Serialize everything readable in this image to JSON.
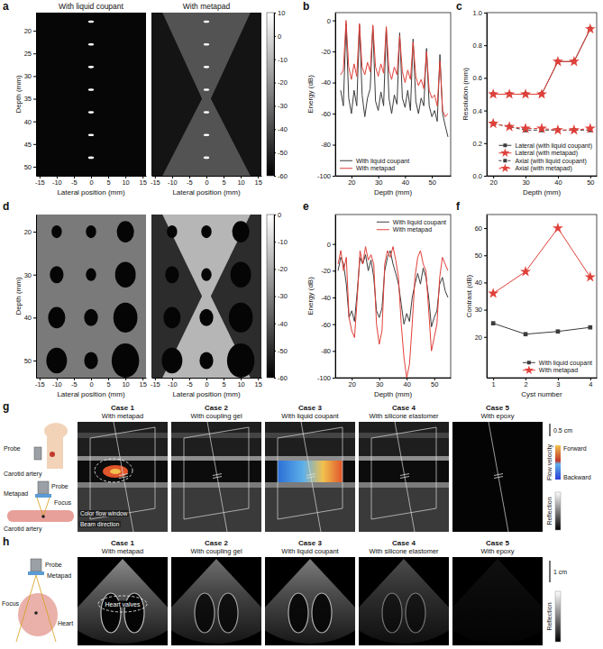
{
  "chart_data": [
    {
      "letter": "a",
      "type": "image",
      "xlabel": "Lateral position (mm)",
      "ylabel": "Depth (mm)",
      "xlim": [
        -16,
        16
      ],
      "xticks": [
        -15,
        -10,
        -5,
        0,
        5,
        10,
        15
      ],
      "ylim": [
        16,
        52
      ],
      "yticks": [
        20,
        25,
        30,
        35,
        40,
        45,
        50
      ],
      "images": [
        {
          "title": "With liquid coupant",
          "color": "#060606"
        },
        {
          "title": "With metapad",
          "color": "#141414",
          "focus": 35
        }
      ],
      "targets": {
        "lateral": [
          0,
          0,
          0,
          0,
          0,
          0,
          0
        ],
        "depth": [
          18,
          23,
          28,
          33,
          38,
          43,
          48
        ]
      },
      "colorbar": {
        "lim": [
          -60,
          10
        ],
        "ticks": [
          10,
          0,
          -10,
          -20,
          -30,
          -40,
          -50,
          -60
        ]
      }
    },
    {
      "letter": "b",
      "type": "line",
      "xlabel": "Depth (mm)",
      "ylabel": "Energy (dB)",
      "xlim": [
        14,
        57
      ],
      "xticks": [
        20,
        30,
        40,
        50
      ],
      "ylim": [
        -100,
        5
      ],
      "yticks": [
        -100,
        -80,
        -60,
        -40,
        -20,
        0
      ],
      "legend": "lower left",
      "x": [
        16,
        17,
        18,
        19,
        20,
        21,
        22,
        23,
        24,
        25,
        26,
        27,
        28,
        29,
        30,
        31,
        32,
        33,
        34,
        35,
        36,
        37,
        38,
        39,
        40,
        41,
        42,
        43,
        44,
        45,
        46,
        47,
        48,
        49,
        50,
        51,
        52,
        53,
        54,
        55,
        56
      ],
      "series": [
        {
          "name": "With liquid coupant",
          "color": "#3c3c3c",
          "values": [
            -45,
            -55,
            -2,
            -50,
            -60,
            -45,
            -55,
            -3,
            -48,
            -62,
            -50,
            -44,
            -4,
            -52,
            -58,
            -46,
            -55,
            -5,
            -50,
            -60,
            -48,
            -54,
            -8,
            -50,
            -56,
            -45,
            -58,
            -12,
            -52,
            -60,
            -50,
            -55,
            -18,
            -55,
            -62,
            -58,
            -65,
            -22,
            -60,
            -68,
            -75
          ]
        },
        {
          "name": "With metapad",
          "color": "#e0403a",
          "values": [
            -35,
            -32,
            0,
            -30,
            -38,
            -28,
            -36,
            -2,
            -30,
            -35,
            -27,
            -33,
            -3,
            -30,
            -36,
            -28,
            -34,
            -4,
            -32,
            -38,
            -30,
            -35,
            -10,
            -33,
            -40,
            -32,
            -38,
            -14,
            -36,
            -42,
            -38,
            -44,
            -20,
            -45,
            -50,
            -48,
            -55,
            -26,
            -58,
            -62,
            -60
          ]
        }
      ]
    },
    {
      "letter": "c",
      "type": "line",
      "xlabel": "Depth (mm)",
      "ylabel": "Resolution (mm)",
      "xlim": [
        18,
        52
      ],
      "xticks": [
        20,
        30,
        40,
        50
      ],
      "ylim": [
        0,
        1
      ],
      "yticks": [
        {
          "value": 0,
          "label": "0.0"
        },
        {
          "value": 0.2,
          "label": "0.2"
        },
        {
          "value": 0.4,
          "label": "0.4"
        },
        {
          "value": 0.6,
          "label": "0.6"
        },
        {
          "value": 0.8,
          "label": "0.8"
        },
        {
          "value": 1,
          "label": "1.0"
        }
      ],
      "legend": "lower right",
      "x": [
        20,
        25,
        30,
        35,
        40,
        45,
        50
      ],
      "series": [
        {
          "name": "Lateral (with liquid coupant)",
          "color": "#3c3c3c",
          "marker": "square",
          "line_style": "solid",
          "values": [
            0.5,
            0.5,
            0.5,
            0.5,
            0.7,
            0.7,
            0.9
          ]
        },
        {
          "name": "Lateral (with metapad)",
          "color": "#e0403a",
          "marker": "star",
          "line_style": "solid",
          "values": [
            0.5,
            0.5,
            0.5,
            0.5,
            0.7,
            0.7,
            0.9
          ]
        },
        {
          "name": "Axial (with liquid coupant)",
          "color": "#3c3c3c",
          "marker": "square",
          "line_style": "dashed",
          "values": [
            0.32,
            0.3,
            0.28,
            0.28,
            0.28,
            0.28,
            0.28
          ]
        },
        {
          "name": "Axial (with metapad)",
          "color": "#e0403a",
          "marker": "star",
          "line_style": "dashed",
          "values": [
            0.32,
            0.3,
            0.29,
            0.29,
            0.28,
            0.28,
            0.29
          ]
        }
      ]
    },
    {
      "letter": "d",
      "type": "image",
      "xlabel": "Lateral position (mm)",
      "ylabel": "Depth (mm)",
      "xlim": [
        -16,
        16
      ],
      "xticks": [
        -15,
        -10,
        -5,
        0,
        5,
        10,
        15
      ],
      "ylim": [
        16,
        54
      ],
      "yticks": [
        20,
        30,
        40,
        50
      ],
      "images": [
        {
          "color": "#7a7a7a"
        },
        {
          "color": "#2c2c2c",
          "focus": 35
        }
      ],
      "targets": {
        "lateral": [
          -10,
          0,
          10,
          -10,
          0,
          10,
          -10,
          0,
          10,
          -10,
          0,
          10
        ],
        "depth": [
          20,
          20,
          20,
          30,
          30,
          30,
          40,
          40,
          40,
          50,
          50,
          50
        ],
        "radius": [
          1.5,
          1.5,
          2.5,
          2,
          1.5,
          3,
          2.5,
          2,
          3.5,
          3,
          2,
          4
        ]
      },
      "colorbar": {
        "lim": [
          -60,
          0
        ],
        "ticks": [
          0,
          -10,
          -20,
          -30,
          -40,
          -50,
          -60
        ]
      }
    },
    {
      "letter": "e",
      "type": "line",
      "xlabel": "Depth (mm)",
      "ylabel": "Energy (dB)",
      "xlim": [
        14,
        56
      ],
      "xticks": [
        20,
        30,
        40,
        50
      ],
      "ylim": [
        -100,
        22
      ],
      "yticks": [
        -100,
        -80,
        -60,
        -40,
        -20,
        0
      ],
      "legend": "upper right",
      "x": [
        15,
        16,
        17,
        18,
        19,
        20,
        21,
        22,
        23,
        24,
        25,
        26,
        27,
        28,
        29,
        30,
        31,
        32,
        33,
        34,
        35,
        36,
        37,
        38,
        39,
        40,
        41,
        42,
        43,
        44,
        45,
        46,
        47,
        48,
        49,
        50,
        51,
        52,
        53,
        54,
        55
      ],
      "series": [
        {
          "name": "With liquid coupant",
          "color": "#3c3c3c",
          "values": [
            -20,
            -10,
            -15,
            -30,
            -55,
            -50,
            -58,
            -35,
            -10,
            -15,
            -8,
            -20,
            -12,
            -25,
            -50,
            -55,
            -48,
            -20,
            -10,
            -5,
            -15,
            -22,
            -30,
            -45,
            -60,
            -52,
            -58,
            -40,
            -30,
            -22,
            -30,
            -18,
            -25,
            -40,
            -62,
            -55,
            -50,
            -30,
            -25,
            -35,
            -40
          ]
        },
        {
          "name": "With metapad",
          "color": "#e0403a",
          "values": [
            -15,
            -5,
            -20,
            -10,
            -55,
            -65,
            -70,
            -40,
            -5,
            -15,
            -2,
            -12,
            -8,
            -15,
            -60,
            -75,
            -65,
            -15,
            -5,
            -10,
            -2,
            -12,
            -25,
            -60,
            -85,
            -100,
            -90,
            -60,
            -25,
            -10,
            -5,
            -15,
            -20,
            -50,
            -80,
            -70,
            -60,
            -25,
            -10,
            -15,
            -20
          ]
        }
      ]
    },
    {
      "letter": "f",
      "type": "line",
      "xlabel": "Cyst number",
      "ylabel": "Contrast (dB)",
      "xlim": [
        0.8,
        4.2
      ],
      "xticks": [
        1,
        2,
        3,
        4
      ],
      "ylim": [
        5,
        65
      ],
      "yticks": [
        20,
        30,
        40,
        50,
        60
      ],
      "legend": "lower right",
      "x": [
        1,
        2,
        3,
        4
      ],
      "series": [
        {
          "name": "With liquid coupant",
          "color": "#3c3c3c",
          "marker": "square",
          "line_style": "solid",
          "values": [
            25,
            21,
            22,
            23.5
          ]
        },
        {
          "name": "With metapad",
          "color": "#e0403a",
          "marker": "star",
          "line_style": "solid",
          "values": [
            36,
            44,
            60,
            42
          ]
        }
      ]
    }
  ],
  "schematics": [
    {
      "letter": "g",
      "diagram_labels": [
        "Probe",
        "Carotid artery",
        "Metapad",
        "Probe",
        "Carotid artery",
        "Focus"
      ],
      "cases": [
        {
          "case": "Case 1",
          "title": "With metapad"
        },
        {
          "case": "Case 2",
          "title": "With coupling gel"
        },
        {
          "case": "Case 3",
          "title": "With liquid coupant"
        },
        {
          "case": "Case 4",
          "title": "With silicone elastomer"
        },
        {
          "case": "Case 5",
          "title": "With epoxy"
        }
      ],
      "annotations": [
        "Color flow window",
        "Beam direction"
      ],
      "scale_bar": "0.5 cm",
      "flow_colorbar": {
        "title": "Flow velocity",
        "top": "Forward",
        "bottom": "Backward"
      },
      "reflection_colorbar": {
        "title": "Reflection"
      }
    },
    {
      "letter": "h",
      "diagram_labels": [
        "Probe",
        "Metapad",
        "Focus",
        "Heart"
      ],
      "cases": [
        {
          "case": "Case 1",
          "title": "With metapad"
        },
        {
          "case": "Case 2",
          "title": "With coupling gel"
        },
        {
          "case": "Case 3",
          "title": "With liquid coupant"
        },
        {
          "case": "Case 4",
          "title": "With silicone elastomer"
        },
        {
          "case": "Case 5",
          "title": "With epoxy"
        }
      ],
      "annotations": [
        "Heart valves"
      ],
      "scale_bar": "1 cm",
      "reflection_colorbar": {
        "title": "Reflection"
      }
    }
  ]
}
